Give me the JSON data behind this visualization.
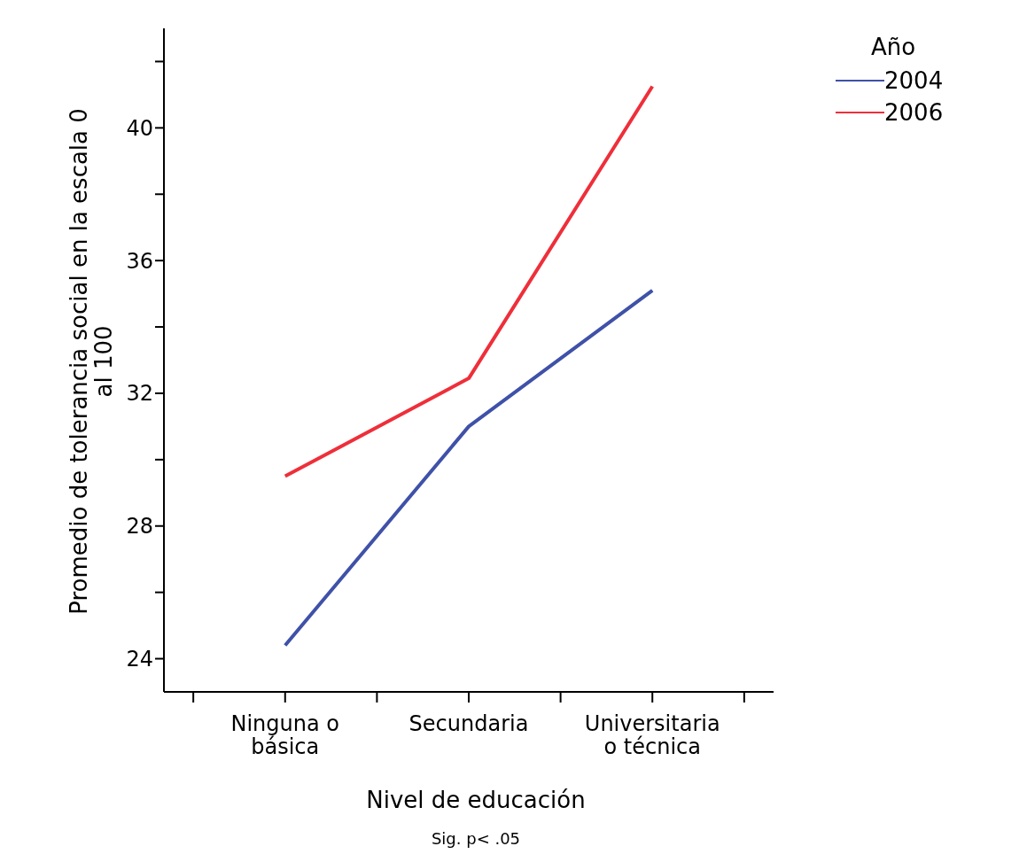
{
  "chart_data": {
    "type": "line",
    "xlabel": "Nivel de educación",
    "ylabel": "Promedio de tolerancia social en la escala 0 al 100",
    "legend_title": "Año",
    "categories": [
      "Ninguna o básica",
      "Secundaria",
      "Universitaria o técnica"
    ],
    "series": [
      {
        "name": "2004",
        "color": "#3f51a8",
        "values": [
          24.4,
          31.0,
          35.1
        ]
      },
      {
        "name": "2006",
        "color": "#ee2f3a",
        "values": [
          29.5,
          32.45,
          41.25
        ]
      }
    ],
    "ylim": [
      23,
      43
    ],
    "yticks": [
      24,
      {
        "value": 26,
        "label": null
      },
      28,
      {
        "value": 30,
        "label": null
      },
      32,
      {
        "value": 34,
        "label": null
      },
      36,
      {
        "value": 38,
        "label": null
      },
      40,
      {
        "value": 42,
        "label": null
      }
    ],
    "grid": false,
    "legend": "top right",
    "marker": "none",
    "line_style": "solid",
    "annotations": [
      "Sig. p< .05"
    ]
  }
}
